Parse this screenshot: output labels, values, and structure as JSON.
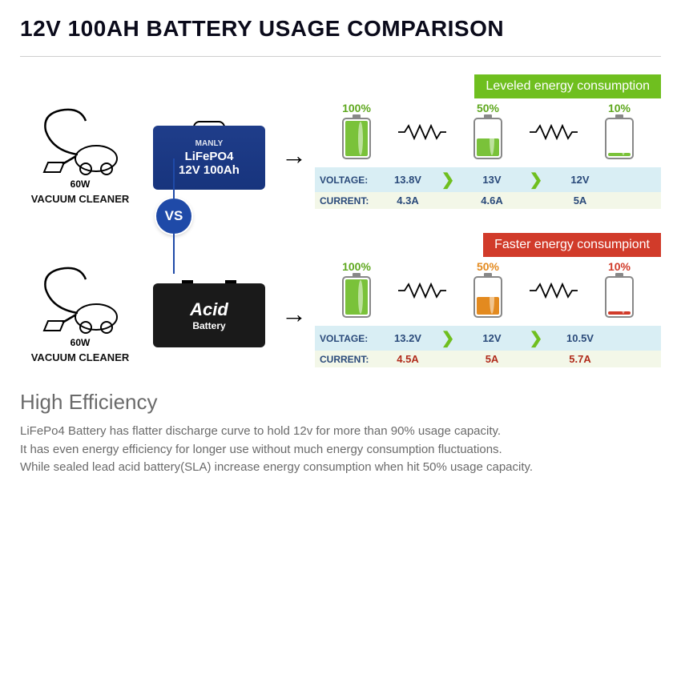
{
  "title": "12V 100AH BATTERY USAGE COMPARISON",
  "vacuum": {
    "top": "60W",
    "bottom": "VACUUM CLEANER"
  },
  "vs": "VS",
  "lifepo4": {
    "brand": "MANLY",
    "name1": "LiFePO4",
    "name2": "12V 100Ah",
    "banner": "Leveled energy consumption",
    "banner_bg": "#6fbf1f",
    "levels": [
      "100%",
      "50%",
      "10%"
    ],
    "level_fills": [
      1.0,
      0.5,
      0.1
    ],
    "level_colors": [
      "#7ac23a",
      "#7ac23a",
      "#7ac23a"
    ],
    "voltage_label": "VOLTAGE:",
    "current_label": "CURRENT:",
    "voltage": [
      "13.8V",
      "13V",
      "12V"
    ],
    "current": [
      "4.3A",
      "4.6A",
      "5A"
    ],
    "row1_bg": "#d9eef4",
    "row2_bg": "#f3f7e8",
    "val_color": "#2a4a7a"
  },
  "acid": {
    "name1": "Acid",
    "name2": "Battery",
    "banner": "Faster energy consumpiont",
    "banner_bg": "#d13b2a",
    "levels": [
      "100%",
      "50%",
      "10%"
    ],
    "level_fills": [
      1.0,
      0.5,
      0.1
    ],
    "level_colors": [
      "#7ac23a",
      "#e38a1f",
      "#d13b2a"
    ],
    "voltage_label": "VOLTAGE:",
    "current_label": "CURRENT:",
    "voltage": [
      "13.2V",
      "12V",
      "10.5V"
    ],
    "current": [
      "4.5A",
      "5A",
      "5.7A"
    ],
    "row1_bg": "#d9eef4",
    "row2_bg": "#f3f7e8",
    "val_color_v": "#2a4a7a",
    "val_color_c": "#b02a1a"
  },
  "footer": {
    "heading": "High Efficiency",
    "line1": "LiFePo4 Battery has flatter discharge curve to hold 12v for more than 90% usage capacity.",
    "line2": "It has even energy efficiency for longer use without much energy consumption fluctuations.",
    "line3": "While sealed lead acid battery(SLA) increase energy consumption when hit 50% usage capacity."
  },
  "colors": {
    "chevron": "#6fbf1f",
    "title": "#0a0a1a"
  }
}
